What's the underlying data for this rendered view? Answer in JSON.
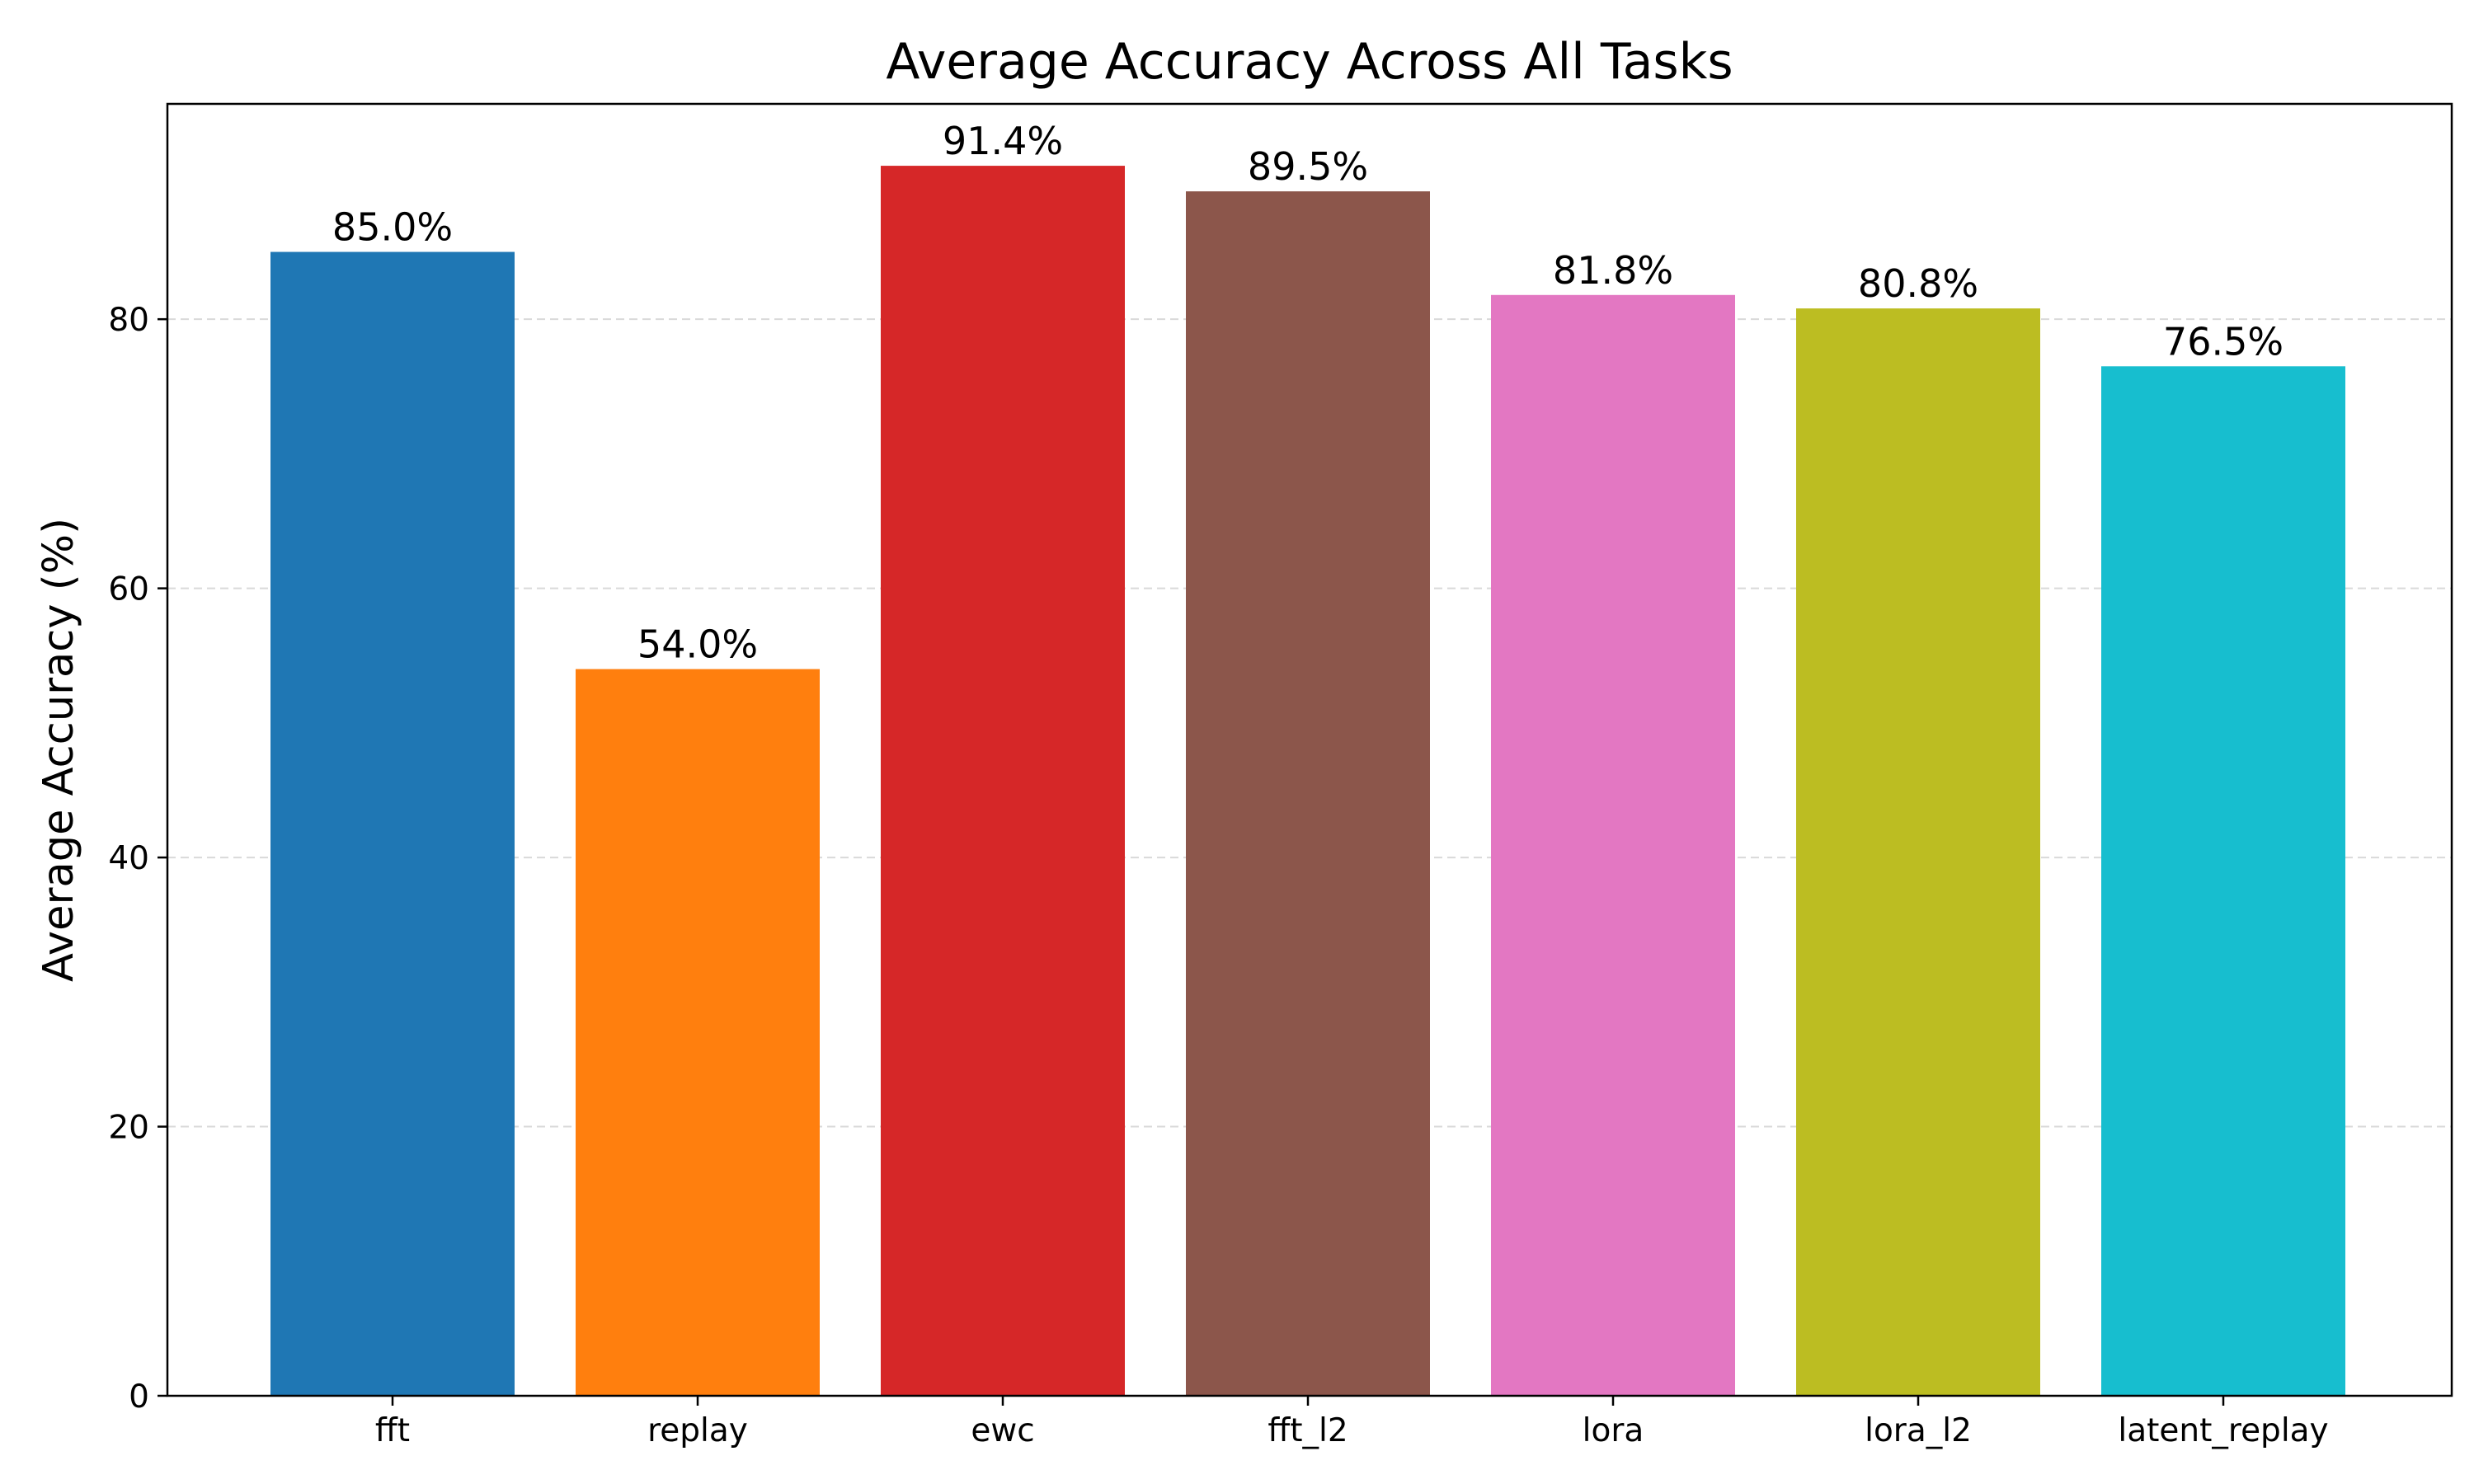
{
  "chart_data": {
    "type": "bar",
    "title": "Average Accuracy Across All Tasks",
    "xlabel": "",
    "ylabel": "Average Accuracy (%)",
    "categories": [
      "fft",
      "replay",
      "ewc",
      "fft_l2",
      "lora",
      "lora_l2",
      "latent_replay"
    ],
    "values": [
      85.0,
      54.0,
      91.4,
      89.5,
      81.8,
      80.8,
      76.5
    ],
    "value_labels": [
      "85.0%",
      "54.0%",
      "91.4%",
      "89.5%",
      "81.8%",
      "80.8%",
      "76.5%"
    ],
    "colors": [
      "#1f77b4",
      "#ff7f0e",
      "#d62728",
      "#8c564b",
      "#e377c2",
      "#bcbd22",
      "#17becf"
    ],
    "ylim": [
      0,
      96
    ],
    "yticks": [
      0,
      20,
      40,
      60,
      80
    ],
    "grid": "y-dashed",
    "legend": "none"
  }
}
